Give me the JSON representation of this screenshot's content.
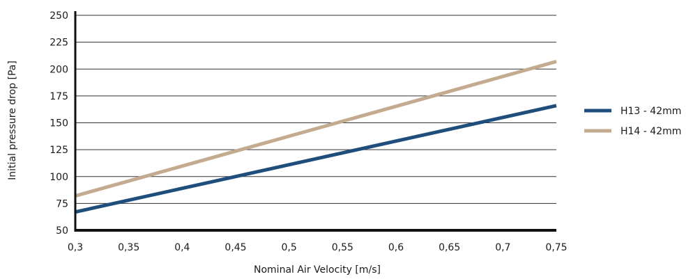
{
  "chart_data": {
    "type": "line",
    "xlabel": "Nominal Air Velocity [m/s]",
    "ylabel": "Initial pressure drop [Pa]",
    "xlim": [
      0.3,
      0.75
    ],
    "ylim": [
      50,
      250
    ],
    "x_ticks": [
      "0,3",
      "0,35",
      "0,4",
      "0,45",
      "0,5",
      "0,55",
      "0,6",
      "0,65",
      "0,7",
      "0,75"
    ],
    "x_tick_values": [
      0.3,
      0.35,
      0.4,
      0.45,
      0.5,
      0.55,
      0.6,
      0.65,
      0.7,
      0.75
    ],
    "y_ticks": [
      "50",
      "75",
      "100",
      "125",
      "150",
      "175",
      "200",
      "225",
      "250"
    ],
    "y_tick_values": [
      50,
      75,
      100,
      125,
      150,
      175,
      200,
      225,
      250
    ],
    "grid": "horizontal",
    "legend_position": "right",
    "series": [
      {
        "name": "H13 - 42mm",
        "color": "#1f4e7d",
        "x": [
          0.3,
          0.75
        ],
        "y": [
          67,
          166
        ]
      },
      {
        "name": "H14 - 42mm",
        "color": "#c4ab90",
        "x": [
          0.3,
          0.75
        ],
        "y": [
          82,
          207
        ]
      }
    ]
  }
}
